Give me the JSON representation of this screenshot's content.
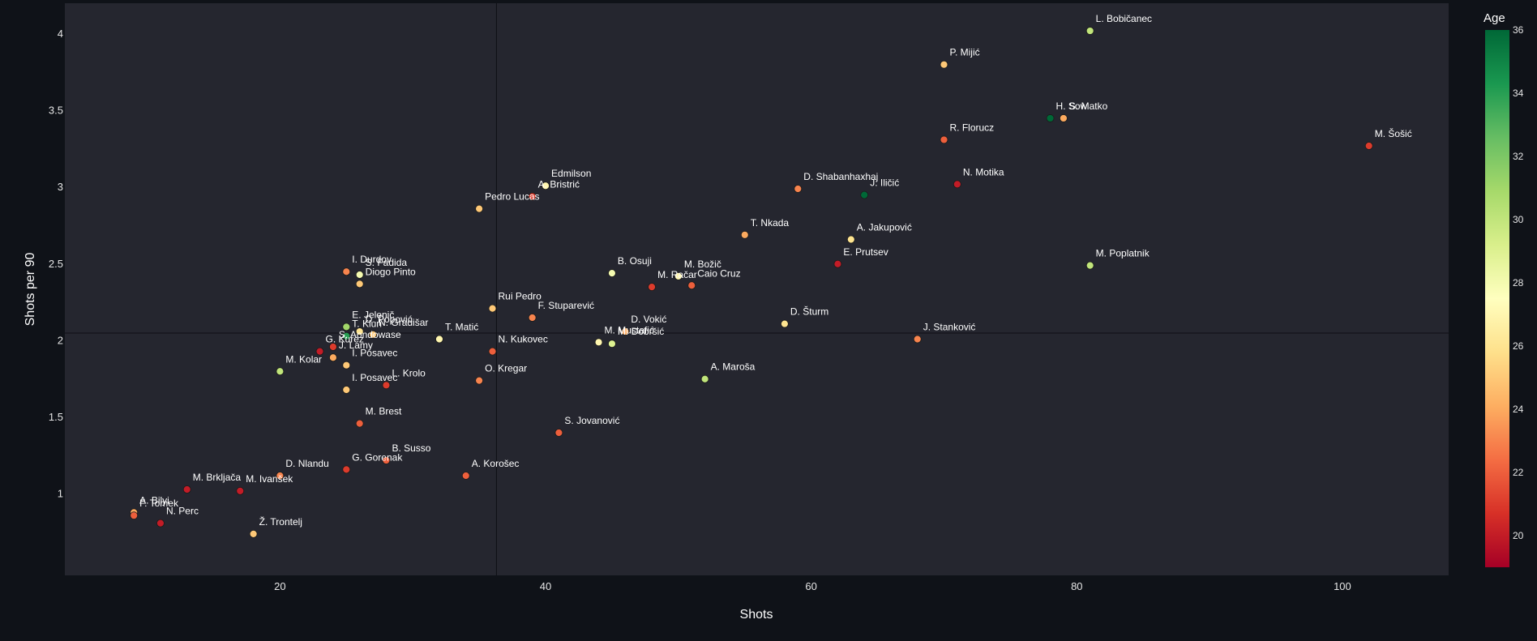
{
  "chart_data": {
    "type": "scatter",
    "xlabel": "Shots",
    "ylabel": "Shots per 90",
    "xlim": [
      3.8,
      108
    ],
    "ylim": [
      0.47,
      4.2
    ],
    "x_ticks": [
      20,
      40,
      60,
      80,
      100
    ],
    "y_ticks": [
      1,
      1.5,
      2,
      2.5,
      3,
      3.5,
      4
    ],
    "x_tick_labels": [
      "20",
      "40",
      "60",
      "80",
      "100"
    ],
    "y_tick_labels": [
      "1",
      "1.5",
      "2",
      "2.5",
      "3",
      "3.5",
      "4"
    ],
    "reference_lines": {
      "x": 36.3,
      "y": 2.05
    },
    "grid": false,
    "color_scale": {
      "title": "Age",
      "range": [
        19,
        36
      ],
      "ticks": [
        20,
        22,
        24,
        26,
        28,
        30,
        32,
        34,
        36
      ],
      "tick_labels": [
        "20",
        "22",
        "24",
        "26",
        "28",
        "30",
        "32",
        "34",
        "36"
      ],
      "colors": [
        "#a50026",
        "#d73027",
        "#f46d43",
        "#fdae61",
        "#fee08b",
        "#ffffbf",
        "#d9ef8b",
        "#a6d96a",
        "#66bd63",
        "#1a9850",
        "#006837"
      ]
    },
    "points": [
      {
        "label": "L. Bobičanec",
        "x": 81,
        "y": 4.02,
        "age": 30
      },
      {
        "label": "P. Mijić",
        "x": 70,
        "y": 3.8,
        "age": 25
      },
      {
        "label": "H. Sow",
        "x": 78,
        "y": 3.45,
        "age": 36
      },
      {
        "label": "S. Matko",
        "x": 79,
        "y": 3.45,
        "age": 24
      },
      {
        "label": "R. Florucz",
        "x": 70,
        "y": 3.31,
        "age": 22
      },
      {
        "label": "M. Šošić",
        "x": 102,
        "y": 3.27,
        "age": 21
      },
      {
        "label": "Edmilson",
        "x": 40,
        "y": 3.01,
        "age": 27
      },
      {
        "label": "A. Bristrić",
        "x": 39,
        "y": 2.94,
        "age": 21
      },
      {
        "label": "N. Motika",
        "x": 71,
        "y": 3.02,
        "age": 20
      },
      {
        "label": "D. Shabanhaxhaj",
        "x": 59,
        "y": 2.99,
        "age": 23
      },
      {
        "label": "J. Iličić",
        "x": 64,
        "y": 2.95,
        "age": 36
      },
      {
        "label": "Pedro Lucas",
        "x": 35,
        "y": 2.86,
        "age": 25
      },
      {
        "label": "T. Nkada",
        "x": 55,
        "y": 2.69,
        "age": 24
      },
      {
        "label": "A. Jakupović",
        "x": 63,
        "y": 2.66,
        "age": 26
      },
      {
        "label": "E. Prutsev",
        "x": 62,
        "y": 2.5,
        "age": 20
      },
      {
        "label": "M. Poplatnik",
        "x": 81,
        "y": 2.49,
        "age": 30
      },
      {
        "label": "I. Durdov",
        "x": 25,
        "y": 2.45,
        "age": 23
      },
      {
        "label": "S. Fadida",
        "x": 26,
        "y": 2.43,
        "age": 28
      },
      {
        "label": "Diogo Pinto",
        "x": 26,
        "y": 2.37,
        "age": 25
      },
      {
        "label": "B. Osuji",
        "x": 45,
        "y": 2.44,
        "age": 28
      },
      {
        "label": "M. Božič",
        "x": 50,
        "y": 2.42,
        "age": 27
      },
      {
        "label": "M. Račar",
        "x": 48,
        "y": 2.35,
        "age": 21
      },
      {
        "label": "Caio Cruz",
        "x": 51,
        "y": 2.36,
        "age": 22
      },
      {
        "label": "Rui Pedro",
        "x": 36,
        "y": 2.21,
        "age": 25
      },
      {
        "label": "F. Stuparević",
        "x": 39,
        "y": 2.15,
        "age": 23
      },
      {
        "label": "D. Vokić",
        "x": 46,
        "y": 2.06,
        "age": 24
      },
      {
        "label": "D. Šturm",
        "x": 58,
        "y": 2.11,
        "age": 26
      },
      {
        "label": "E. Jelenič",
        "x": 25,
        "y": 2.09,
        "age": 31
      },
      {
        "label": "D. Popović",
        "x": 26,
        "y": 2.06,
        "age": 26
      },
      {
        "label": "N. Gradišar",
        "x": 27,
        "y": 2.04,
        "age": 25
      },
      {
        "label": "T. Matić",
        "x": 32,
        "y": 2.01,
        "age": 27
      },
      {
        "label": "J. Stanković",
        "x": 68,
        "y": 2.01,
        "age": 23
      },
      {
        "label": "T. Klun",
        "x": 25,
        "y": 2.03,
        "age": 34
      },
      {
        "label": "S. Aondowase",
        "x": 24,
        "y": 1.96,
        "age": 21
      },
      {
        "label": "G. Kurez",
        "x": 23,
        "y": 1.93,
        "age": 20
      },
      {
        "label": "J. Lamy",
        "x": 24,
        "y": 1.89,
        "age": 24
      },
      {
        "label": "N. Kukovec",
        "x": 36,
        "y": 1.93,
        "age": 22
      },
      {
        "label": "M. Mustafić",
        "x": 44,
        "y": 1.99,
        "age": 27
      },
      {
        "label": "M. Dobršić",
        "x": 45,
        "y": 1.98,
        "age": 29
      },
      {
        "label": "M. Kolar",
        "x": 20,
        "y": 1.8,
        "age": 30
      },
      {
        "label": "I. Posavec",
        "x": 25,
        "y": 1.84,
        "age": 25
      },
      {
        "label": "L. Krolo",
        "x": 28,
        "y": 1.71,
        "age": 21
      },
      {
        "label": "O. Kregar",
        "x": 35,
        "y": 1.74,
        "age": 23
      },
      {
        "label": "A. Maroša",
        "x": 52,
        "y": 1.75,
        "age": 30
      },
      {
        "label": "I. Posavec",
        "x": 25,
        "y": 1.68,
        "age": 25
      },
      {
        "label": "M. Brest",
        "x": 26,
        "y": 1.46,
        "age": 22
      },
      {
        "label": "S. Jovanović",
        "x": 41,
        "y": 1.4,
        "age": 22
      },
      {
        "label": "B. Susso",
        "x": 28,
        "y": 1.22,
        "age": 22
      },
      {
        "label": "G. Gorenak",
        "x": 25,
        "y": 1.16,
        "age": 21
      },
      {
        "label": "D. Nlandu",
        "x": 20,
        "y": 1.12,
        "age": 23
      },
      {
        "label": "A. Korošec",
        "x": 34,
        "y": 1.12,
        "age": 22
      },
      {
        "label": "M. Brkljača",
        "x": 13,
        "y": 1.03,
        "age": 20
      },
      {
        "label": "M. Ivanšek",
        "x": 17,
        "y": 1.02,
        "age": 20
      },
      {
        "label": "A. Bilyi",
        "x": 9,
        "y": 0.88,
        "age": 24
      },
      {
        "label": "F. Tomek",
        "x": 9,
        "y": 0.86,
        "age": 22
      },
      {
        "label": "N. Perc",
        "x": 11,
        "y": 0.81,
        "age": 20
      },
      {
        "label": "Ž. Trontelj",
        "x": 18,
        "y": 0.74,
        "age": 25
      }
    ]
  }
}
